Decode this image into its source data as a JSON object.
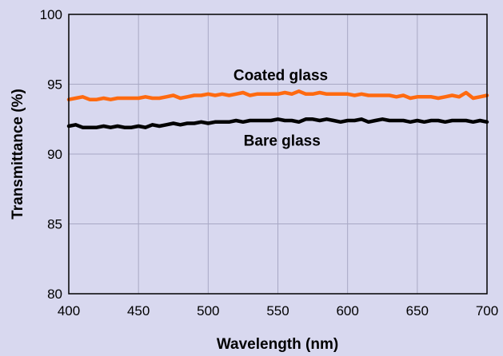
{
  "chart_data": {
    "type": "line",
    "xlabel": "Wavelength (nm)",
    "ylabel": "Transmittance (%)",
    "xlim": [
      400,
      700
    ],
    "ylim": [
      80,
      100
    ],
    "xticks": [
      400,
      450,
      500,
      550,
      600,
      650,
      700
    ],
    "yticks": [
      80,
      85,
      90,
      95,
      100
    ],
    "xtick_labels": [
      "400",
      "450",
      "500",
      "550",
      "600",
      "650",
      "700"
    ],
    "ytick_labels": [
      "80",
      "85",
      "90",
      "95",
      "100"
    ],
    "grid": true,
    "annotations": [
      {
        "text": "Coated glass",
        "series": "coated",
        "x": 552,
        "y": 95.7
      },
      {
        "text": "Bare glass",
        "series": "bare",
        "x": 553,
        "y": 91.0
      }
    ],
    "series": [
      {
        "id": "coated",
        "color": "#ff6a10",
        "x": [
          400,
          405,
          410,
          415,
          420,
          425,
          430,
          435,
          440,
          445,
          450,
          455,
          460,
          465,
          470,
          475,
          480,
          485,
          490,
          495,
          500,
          505,
          510,
          515,
          520,
          525,
          530,
          535,
          540,
          545,
          550,
          555,
          560,
          565,
          570,
          575,
          580,
          585,
          590,
          595,
          600,
          605,
          610,
          615,
          620,
          625,
          630,
          635,
          640,
          645,
          650,
          655,
          660,
          665,
          670,
          675,
          680,
          685,
          690,
          695,
          700
        ],
        "values": [
          93.9,
          94.0,
          94.1,
          93.9,
          93.9,
          94.0,
          93.9,
          94.0,
          94.0,
          94.0,
          94.0,
          94.1,
          94.0,
          94.0,
          94.1,
          94.2,
          94.0,
          94.1,
          94.2,
          94.2,
          94.3,
          94.2,
          94.3,
          94.2,
          94.3,
          94.4,
          94.2,
          94.3,
          94.3,
          94.3,
          94.3,
          94.4,
          94.3,
          94.5,
          94.3,
          94.3,
          94.4,
          94.3,
          94.3,
          94.3,
          94.3,
          94.2,
          94.3,
          94.2,
          94.2,
          94.2,
          94.2,
          94.1,
          94.2,
          94.0,
          94.1,
          94.1,
          94.1,
          94.0,
          94.1,
          94.2,
          94.1,
          94.4,
          94.0,
          94.1,
          94.2
        ]
      },
      {
        "id": "bare",
        "color": "#000000",
        "x": [
          400,
          405,
          410,
          415,
          420,
          425,
          430,
          435,
          440,
          445,
          450,
          455,
          460,
          465,
          470,
          475,
          480,
          485,
          490,
          495,
          500,
          505,
          510,
          515,
          520,
          525,
          530,
          535,
          540,
          545,
          550,
          555,
          560,
          565,
          570,
          575,
          580,
          585,
          590,
          595,
          600,
          605,
          610,
          615,
          620,
          625,
          630,
          635,
          640,
          645,
          650,
          655,
          660,
          665,
          670,
          675,
          680,
          685,
          690,
          695,
          700
        ],
        "values": [
          92.0,
          92.1,
          91.9,
          91.9,
          91.9,
          92.0,
          91.9,
          92.0,
          91.9,
          91.9,
          92.0,
          91.9,
          92.1,
          92.0,
          92.1,
          92.2,
          92.1,
          92.2,
          92.2,
          92.3,
          92.2,
          92.3,
          92.3,
          92.3,
          92.4,
          92.3,
          92.4,
          92.4,
          92.4,
          92.4,
          92.5,
          92.4,
          92.4,
          92.3,
          92.5,
          92.5,
          92.4,
          92.5,
          92.4,
          92.3,
          92.4,
          92.4,
          92.5,
          92.3,
          92.4,
          92.5,
          92.4,
          92.4,
          92.4,
          92.3,
          92.4,
          92.3,
          92.4,
          92.4,
          92.3,
          92.4,
          92.4,
          92.4,
          92.3,
          92.4,
          92.3
        ]
      }
    ]
  }
}
